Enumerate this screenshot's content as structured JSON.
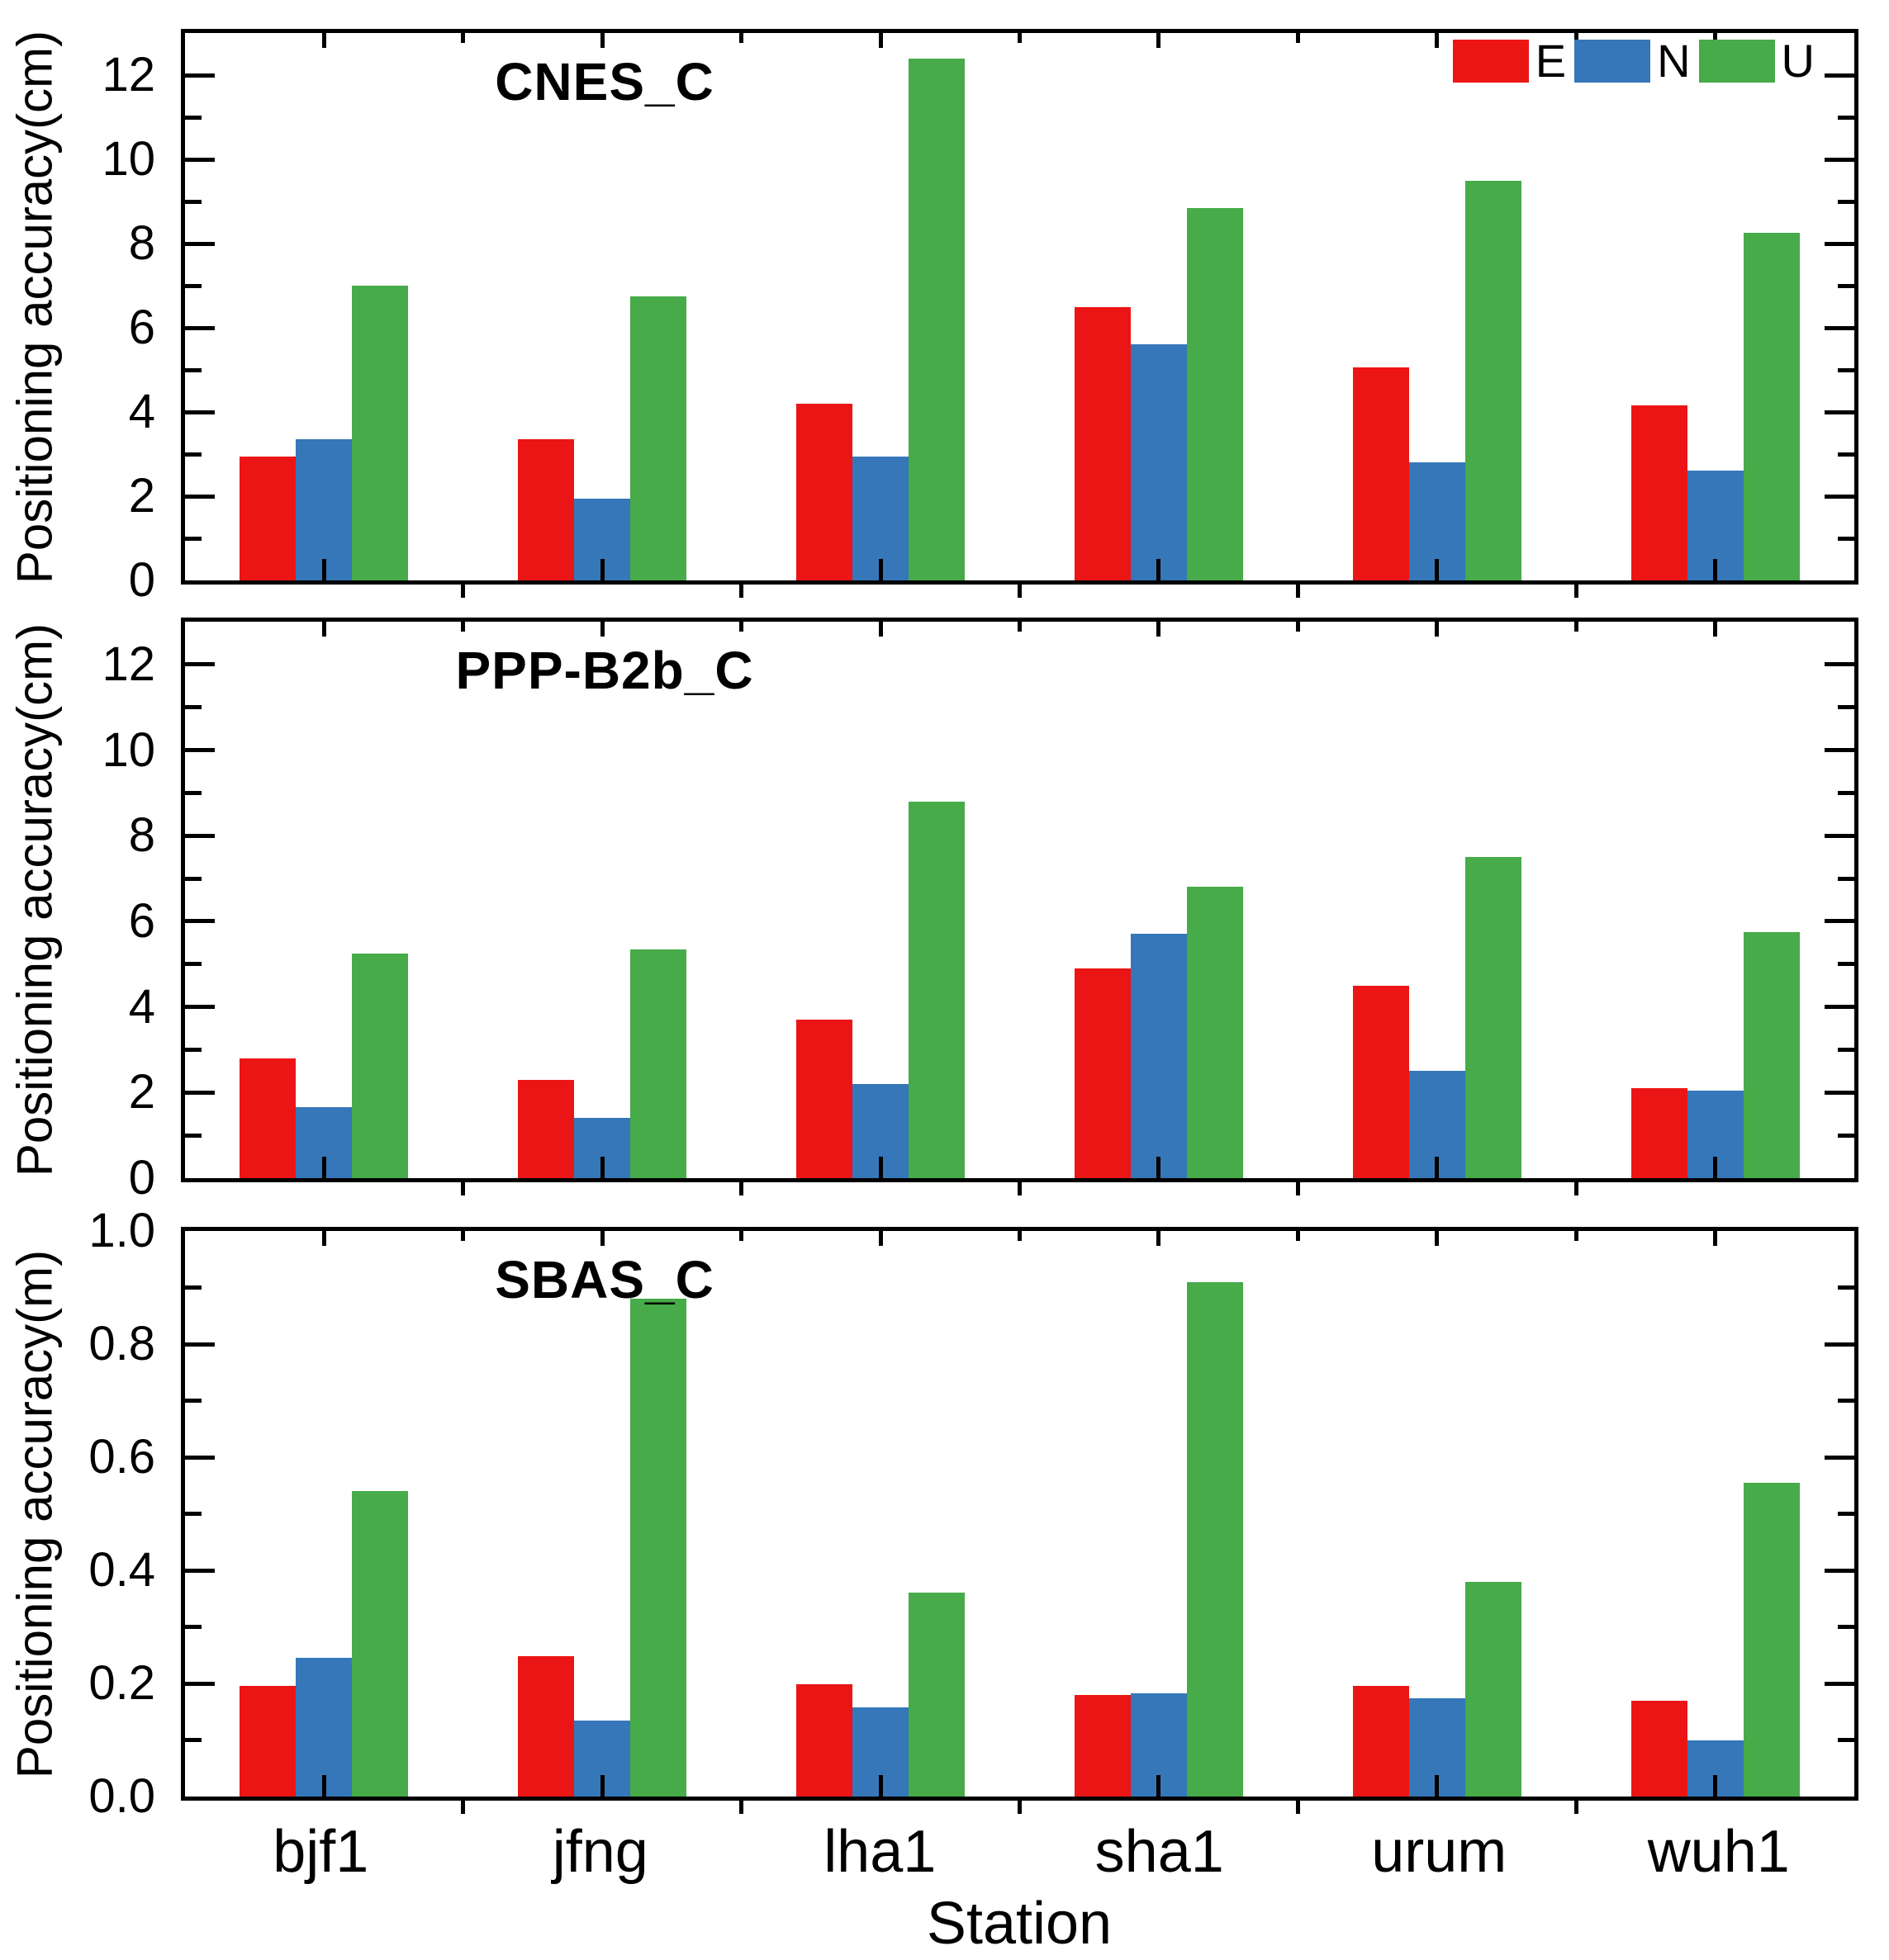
{
  "figure": {
    "xlabel": "Station",
    "stations": [
      "bjf1",
      "jfng",
      "lha1",
      "sha1",
      "urum",
      "wuh1"
    ],
    "legend": {
      "items": [
        {
          "label": "E",
          "color": "#ec1515"
        },
        {
          "label": "N",
          "color": "#3577b9"
        },
        {
          "label": "U",
          "color": "#46ab48"
        }
      ]
    },
    "colors": {
      "east": "#ec1515",
      "north": "#3577b9",
      "up": "#46ab48",
      "frame": "#000000",
      "background": "#ffffff"
    }
  },
  "chart_data": [
    {
      "type": "bar",
      "title": "CNES_C",
      "ylabel": "Positioning accuracy(cm)",
      "xlabel": "Station",
      "categories": [
        "bjf1",
        "jfng",
        "lha1",
        "sha1",
        "urum",
        "wuh1"
      ],
      "ylim": [
        0,
        13
      ],
      "grid": false,
      "legend_position": "top-right",
      "y_ticks": [
        {
          "v": 0,
          "label": "0"
        },
        {
          "v": 2,
          "label": "2"
        },
        {
          "v": 4,
          "label": "4"
        },
        {
          "v": 6,
          "label": "6"
        },
        {
          "v": 8,
          "label": "8"
        },
        {
          "v": 10,
          "label": "10"
        },
        {
          "v": 12,
          "label": "12"
        }
      ],
      "y_minor_ticks": [
        1,
        3,
        5,
        7,
        9,
        11
      ],
      "series": [
        {
          "name": "E",
          "color": "#ec1515",
          "values": [
            2.95,
            3.35,
            4.2,
            6.5,
            5.05,
            4.15
          ]
        },
        {
          "name": "N",
          "color": "#3577b9",
          "values": [
            3.35,
            1.95,
            2.95,
            5.6,
            2.8,
            2.6
          ]
        },
        {
          "name": "U",
          "color": "#46ab48",
          "values": [
            7.0,
            6.75,
            12.4,
            8.85,
            9.5,
            8.25
          ]
        }
      ]
    },
    {
      "type": "bar",
      "title": "PPP-B2b_C",
      "ylabel": "Positioning accuracy(cm)",
      "xlabel": "Station",
      "categories": [
        "bjf1",
        "jfng",
        "lha1",
        "sha1",
        "urum",
        "wuh1"
      ],
      "ylim": [
        0,
        13
      ],
      "grid": false,
      "y_ticks": [
        {
          "v": 0,
          "label": "0"
        },
        {
          "v": 2,
          "label": "2"
        },
        {
          "v": 4,
          "label": "4"
        },
        {
          "v": 6,
          "label": "6"
        },
        {
          "v": 8,
          "label": "8"
        },
        {
          "v": 10,
          "label": "10"
        },
        {
          "v": 12,
          "label": "12"
        }
      ],
      "y_minor_ticks": [
        1,
        3,
        5,
        7,
        9,
        11
      ],
      "series": [
        {
          "name": "E",
          "color": "#ec1515",
          "values": [
            2.8,
            2.3,
            3.7,
            4.9,
            4.5,
            2.1
          ]
        },
        {
          "name": "N",
          "color": "#3577b9",
          "values": [
            1.65,
            1.4,
            2.2,
            5.7,
            2.5,
            2.05
          ]
        },
        {
          "name": "U",
          "color": "#46ab48",
          "values": [
            5.25,
            5.35,
            8.8,
            6.8,
            7.5,
            5.75
          ]
        }
      ]
    },
    {
      "type": "bar",
      "title": "SBAS_C",
      "ylabel": "Positioning accuracy(m)",
      "xlabel": "Station",
      "categories": [
        "bjf1",
        "jfng",
        "lha1",
        "sha1",
        "urum",
        "wuh1"
      ],
      "ylim": [
        0,
        1.0
      ],
      "grid": false,
      "y_ticks": [
        {
          "v": 0.0,
          "label": "0.0"
        },
        {
          "v": 0.2,
          "label": "0.2"
        },
        {
          "v": 0.4,
          "label": "0.4"
        },
        {
          "v": 0.6,
          "label": "0.6"
        },
        {
          "v": 0.8,
          "label": "0.8"
        },
        {
          "v": 1.0,
          "label": "1.0"
        }
      ],
      "y_minor_ticks": [
        0.1,
        0.3,
        0.5,
        0.7,
        0.9
      ],
      "series": [
        {
          "name": "E",
          "color": "#ec1515",
          "values": [
            0.195,
            0.248,
            0.198,
            0.18,
            0.196,
            0.17
          ]
        },
        {
          "name": "N",
          "color": "#3577b9",
          "values": [
            0.245,
            0.135,
            0.158,
            0.182,
            0.174,
            0.1
          ]
        },
        {
          "name": "U",
          "color": "#46ab48",
          "values": [
            0.54,
            0.88,
            0.36,
            0.91,
            0.38,
            0.555
          ]
        }
      ]
    }
  ]
}
